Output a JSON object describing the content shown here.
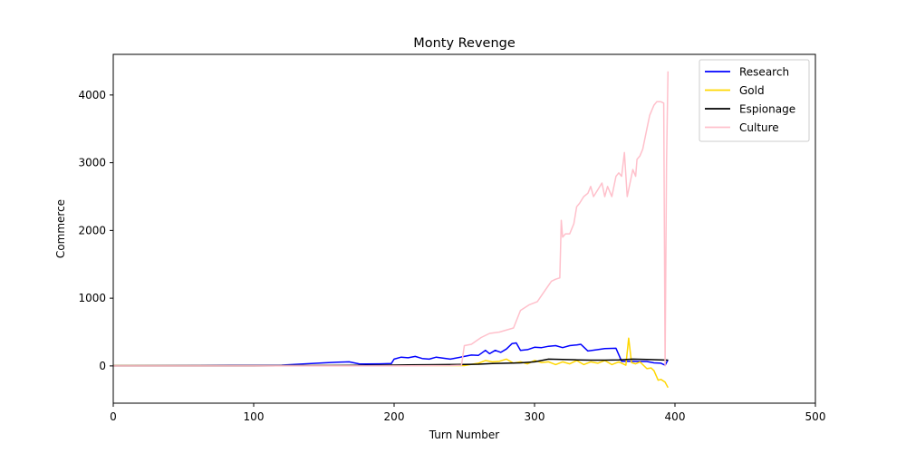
{
  "chart_data": {
    "type": "line",
    "title": "Monty Revenge",
    "xlabel": "Turn Number",
    "ylabel": "Commerce",
    "xlim": [
      0,
      500
    ],
    "ylim": [
      -550,
      4600
    ],
    "xticks": [
      0,
      100,
      200,
      300,
      400,
      500
    ],
    "yticks": [
      0,
      1000,
      2000,
      3000,
      4000
    ],
    "grid": false,
    "legend_position": "top-right",
    "series": [
      {
        "name": "Research",
        "color": "#0000ff",
        "x": [
          0,
          60,
          100,
          120,
          135,
          150,
          160,
          168,
          175,
          180,
          190,
          198,
          200,
          205,
          210,
          215,
          220,
          225,
          230,
          240,
          250,
          255,
          260,
          265,
          268,
          272,
          276,
          280,
          284,
          287,
          290,
          295,
          300,
          305,
          310,
          315,
          320,
          325,
          330,
          333,
          338,
          345,
          350,
          358,
          362,
          370,
          380,
          385,
          390,
          393,
          395
        ],
        "y": [
          5,
          8,
          10,
          12,
          28,
          45,
          55,
          60,
          30,
          28,
          30,
          35,
          100,
          130,
          120,
          140,
          110,
          100,
          130,
          100,
          140,
          160,
          155,
          230,
          180,
          230,
          200,
          250,
          330,
          340,
          230,
          240,
          275,
          270,
          290,
          300,
          270,
          300,
          310,
          320,
          220,
          240,
          255,
          260,
          70,
          70,
          65,
          45,
          40,
          10,
          90
        ]
      },
      {
        "name": "Gold",
        "color": "#ffd700",
        "x": [
          0,
          100,
          150,
          200,
          230,
          250,
          260,
          265,
          270,
          275,
          280,
          285,
          290,
          295,
          300,
          305,
          310,
          315,
          320,
          325,
          330,
          335,
          340,
          345,
          350,
          355,
          360,
          365,
          367,
          369,
          372,
          375,
          380,
          383,
          385,
          388,
          390,
          393,
          395
        ],
        "y": [
          5,
          5,
          5,
          5,
          5,
          5,
          40,
          80,
          60,
          70,
          100,
          40,
          60,
          30,
          80,
          50,
          60,
          20,
          60,
          30,
          80,
          20,
          60,
          40,
          80,
          20,
          60,
          10,
          410,
          50,
          30,
          60,
          -40,
          -30,
          -70,
          -210,
          -200,
          -240,
          -320
        ]
      },
      {
        "name": "Espionage",
        "color": "#000000",
        "x": [
          0,
          100,
          150,
          190,
          200,
          210,
          230,
          250,
          260,
          270,
          280,
          290,
          300,
          305,
          310,
          320,
          330,
          340,
          350,
          360,
          370,
          380,
          390,
          395
        ],
        "y": [
          0,
          0,
          5,
          10,
          12,
          15,
          18,
          22,
          25,
          35,
          40,
          45,
          60,
          80,
          100,
          95,
          90,
          85,
          85,
          90,
          100,
          95,
          90,
          85
        ]
      },
      {
        "name": "Culture",
        "color": "#ffc0cb",
        "x": [
          0,
          100,
          200,
          240,
          248,
          250,
          255,
          262,
          268,
          275,
          285,
          290,
          296,
          302,
          307,
          312,
          315,
          318,
          319,
          320,
          322,
          325,
          328,
          330,
          332,
          335,
          338,
          340,
          342,
          345,
          348,
          350,
          352,
          355,
          358,
          360,
          362,
          364,
          366,
          368,
          370,
          372,
          373,
          375,
          377,
          380,
          382,
          385,
          387,
          390,
          392,
          393,
          394,
          395
        ],
        "y": [
          0,
          0,
          0,
          5,
          10,
          300,
          320,
          420,
          480,
          500,
          560,
          820,
          900,
          950,
          1100,
          1250,
          1280,
          1300,
          2150,
          1900,
          1950,
          1950,
          2100,
          2350,
          2400,
          2500,
          2550,
          2650,
          2500,
          2600,
          2700,
          2500,
          2650,
          2500,
          2800,
          2850,
          2800,
          3150,
          2500,
          2700,
          2900,
          2800,
          3050,
          3100,
          3200,
          3500,
          3700,
          3850,
          3900,
          3900,
          3880,
          0,
          3000,
          4350
        ]
      }
    ]
  }
}
